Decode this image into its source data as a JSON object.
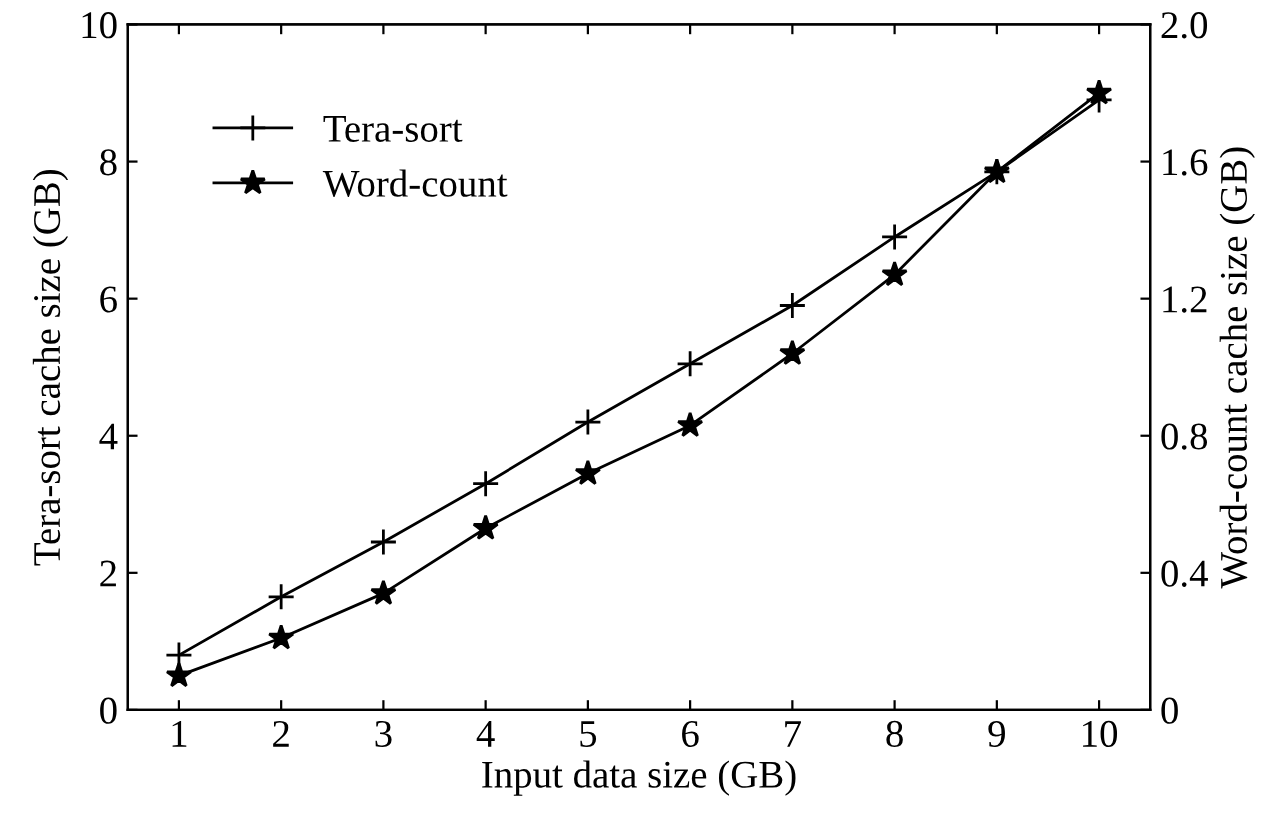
{
  "chart_data": {
    "type": "line",
    "xlabel": "Input data size (GB)",
    "ylabel": "Tera-sort cache size (GB)",
    "y2label": "Word-count cache size (GB)",
    "x": [
      1,
      2,
      3,
      4,
      5,
      6,
      7,
      8,
      9,
      10
    ],
    "series": [
      {
        "name": "Tera-sort",
        "color": "#000000",
        "marker": "cross",
        "values": [
          0.8,
          1.65,
          2.45,
          3.3,
          4.2,
          5.05,
          5.9,
          6.9,
          7.85,
          8.9
        ]
      },
      {
        "name": "Word-count",
        "color": "#000000",
        "marker": "star",
        "axis": "y2",
        "values": [
          0.1,
          0.21,
          0.34,
          0.53,
          0.69,
          0.83,
          1.04,
          1.27,
          1.57,
          1.8
        ]
      }
    ],
    "xlim": [
      0.5,
      10.5
    ],
    "xticks": [
      1,
      2,
      3,
      4,
      5,
      6,
      7,
      8,
      9,
      10
    ],
    "ylim": [
      0,
      10
    ],
    "yticks": [
      0,
      2,
      4,
      6,
      8,
      10
    ],
    "y2lim": [
      0,
      2.0
    ],
    "y2ticks": [
      0,
      {
        "value": 0.4,
        "label": "0.4"
      },
      {
        "value": 0.8,
        "label": "0.8"
      },
      {
        "value": 1.2,
        "label": "1.2"
      },
      {
        "value": 1.6,
        "label": "1.6"
      },
      {
        "value": 2.0,
        "label": "2.0"
      }
    ],
    "legend": "top left",
    "grid": false,
    "line_style": "solid"
  }
}
